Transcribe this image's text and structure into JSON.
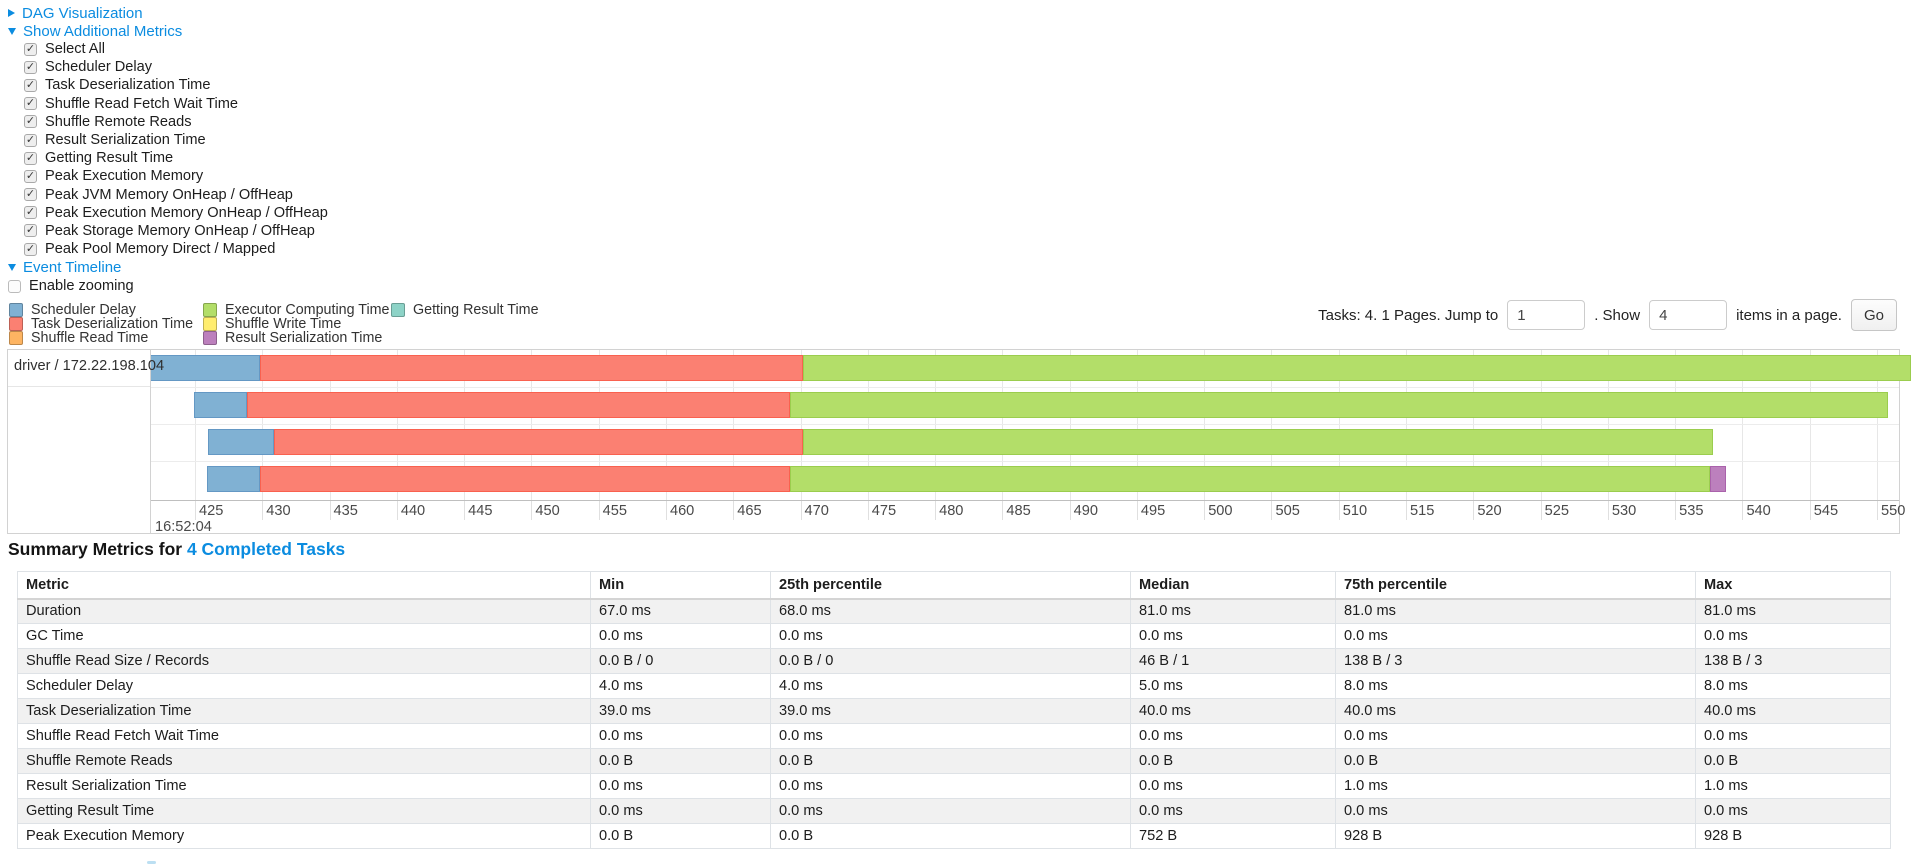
{
  "sections": {
    "dag": {
      "label": "DAG Visualization"
    },
    "additional_metrics": {
      "label": "Show Additional Metrics"
    },
    "event_timeline": {
      "label": "Event Timeline"
    }
  },
  "metrics_checkboxes": [
    "Select All",
    "Scheduler Delay",
    "Task Deserialization Time",
    "Shuffle Read Fetch Wait Time",
    "Shuffle Remote Reads",
    "Result Serialization Time",
    "Getting Result Time",
    "Peak Execution Memory",
    "Peak JVM Memory OnHeap / OffHeap",
    "Peak Execution Memory OnHeap / OffHeap",
    "Peak Storage Memory OnHeap / OffHeap",
    "Peak Pool Memory Direct / Mapped"
  ],
  "enable_zooming_label": "Enable zooming",
  "legend": {
    "columns": [
      [
        {
          "label": "Scheduler Delay",
          "color": "#80B1D3"
        },
        {
          "label": "Task Deserialization Time",
          "color": "#FB8072"
        },
        {
          "label": "Shuffle Read Time",
          "color": "#FDB462"
        }
      ],
      [
        {
          "label": "Executor Computing Time",
          "color": "#B3DE69"
        },
        {
          "label": "Shuffle Write Time",
          "color": "#FFED6F"
        },
        {
          "label": "Result Serialization Time",
          "color": "#BC80BD"
        }
      ],
      [
        {
          "label": "Getting Result Time",
          "color": "#8DD3C7"
        }
      ]
    ]
  },
  "pagination": {
    "tasks_text": "Tasks: 4. 1 Pages. Jump to",
    "jump_value": "1",
    "show_text": ". Show",
    "show_value": "4",
    "items_text": "items in a page.",
    "go_label": "Go"
  },
  "chart_data": {
    "type": "timeline",
    "group_label": "driver / 172.22.198.104",
    "x_axis": {
      "major_label": "16:52:04",
      "tick_start": 425,
      "tick_end": 550,
      "tick_step": 5,
      "unit": "ms of 16:52:04"
    },
    "colors": {
      "scheduler_delay": {
        "fill": "#80B1D3",
        "border": "#6498C4"
      },
      "task_deserialization": {
        "fill": "#FB8072",
        "border": "#F9614F"
      },
      "shuffle_read": {
        "fill": "#FDB462",
        "border": "#FCA13A"
      },
      "executor_computing": {
        "fill": "#B3DE69",
        "border": "#9BCD4E"
      },
      "shuffle_write": {
        "fill": "#FFED6F",
        "border": "#FFE53D"
      },
      "getting_result": {
        "fill": "#8DD3C7",
        "border": "#6FC7B7"
      },
      "result_serialization": {
        "fill": "#BC80BD",
        "border": "#AA62AB"
      }
    },
    "tasks": [
      {
        "segments": [
          {
            "type": "scheduler_delay",
            "start": 421.6,
            "end": 429.8
          },
          {
            "type": "task_deserialization",
            "start": 429.8,
            "end": 470.2
          },
          {
            "type": "executor_computing",
            "start": 470.2,
            "end": 552.5
          }
        ]
      },
      {
        "segments": [
          {
            "type": "scheduler_delay",
            "start": 424.9,
            "end": 428.9
          },
          {
            "type": "task_deserialization",
            "start": 428.9,
            "end": 469.2
          },
          {
            "type": "executor_computing",
            "start": 469.2,
            "end": 550.8
          }
        ]
      },
      {
        "segments": [
          {
            "type": "scheduler_delay",
            "start": 426.0,
            "end": 430.9
          },
          {
            "type": "task_deserialization",
            "start": 430.9,
            "end": 470.2
          },
          {
            "type": "executor_computing",
            "start": 470.2,
            "end": 537.8
          }
        ]
      },
      {
        "segments": [
          {
            "type": "scheduler_delay",
            "start": 425.9,
            "end": 429.8
          },
          {
            "type": "task_deserialization",
            "start": 429.8,
            "end": 469.2
          },
          {
            "type": "executor_computing",
            "start": 469.2,
            "end": 537.6
          },
          {
            "type": "result_serialization",
            "start": 537.6,
            "end": 538.8
          }
        ]
      }
    ]
  },
  "summary": {
    "title_prefix": "Summary Metrics for ",
    "link_label": "4 Completed Tasks"
  },
  "table": {
    "headers": [
      "Metric",
      "Min",
      "25th percentile",
      "Median",
      "75th percentile",
      "Max"
    ],
    "rows": [
      {
        "metric": "Duration",
        "values": [
          "67.0 ms",
          "68.0 ms",
          "81.0 ms",
          "81.0 ms",
          "81.0 ms"
        ]
      },
      {
        "metric": "GC Time",
        "values": [
          "0.0 ms",
          "0.0 ms",
          "0.0 ms",
          "0.0 ms",
          "0.0 ms"
        ]
      },
      {
        "metric": "Shuffle Read Size / Records",
        "values": [
          "0.0 B / 0",
          "0.0 B / 0",
          "46 B / 1",
          "138 B / 3",
          "138 B / 3"
        ]
      },
      {
        "metric": "Scheduler Delay",
        "values": [
          "4.0 ms",
          "4.0 ms",
          "5.0 ms",
          "8.0 ms",
          "8.0 ms"
        ]
      },
      {
        "metric": "Task Deserialization Time",
        "values": [
          "39.0 ms",
          "39.0 ms",
          "40.0 ms",
          "40.0 ms",
          "40.0 ms"
        ]
      },
      {
        "metric": "Shuffle Read Fetch Wait Time",
        "values": [
          "0.0 ms",
          "0.0 ms",
          "0.0 ms",
          "0.0 ms",
          "0.0 ms"
        ]
      },
      {
        "metric": "Shuffle Remote Reads",
        "values": [
          "0.0 B",
          "0.0 B",
          "0.0 B",
          "0.0 B",
          "0.0 B"
        ]
      },
      {
        "metric": "Result Serialization Time",
        "values": [
          "0.0 ms",
          "0.0 ms",
          "0.0 ms",
          "1.0 ms",
          "1.0 ms"
        ]
      },
      {
        "metric": "Getting Result Time",
        "values": [
          "0.0 ms",
          "0.0 ms",
          "0.0 ms",
          "0.0 ms",
          "0.0 ms"
        ]
      },
      {
        "metric": "Peak Execution Memory",
        "values": [
          "0.0 B",
          "0.0 B",
          "752 B",
          "928 B",
          "928 B"
        ]
      }
    ]
  }
}
